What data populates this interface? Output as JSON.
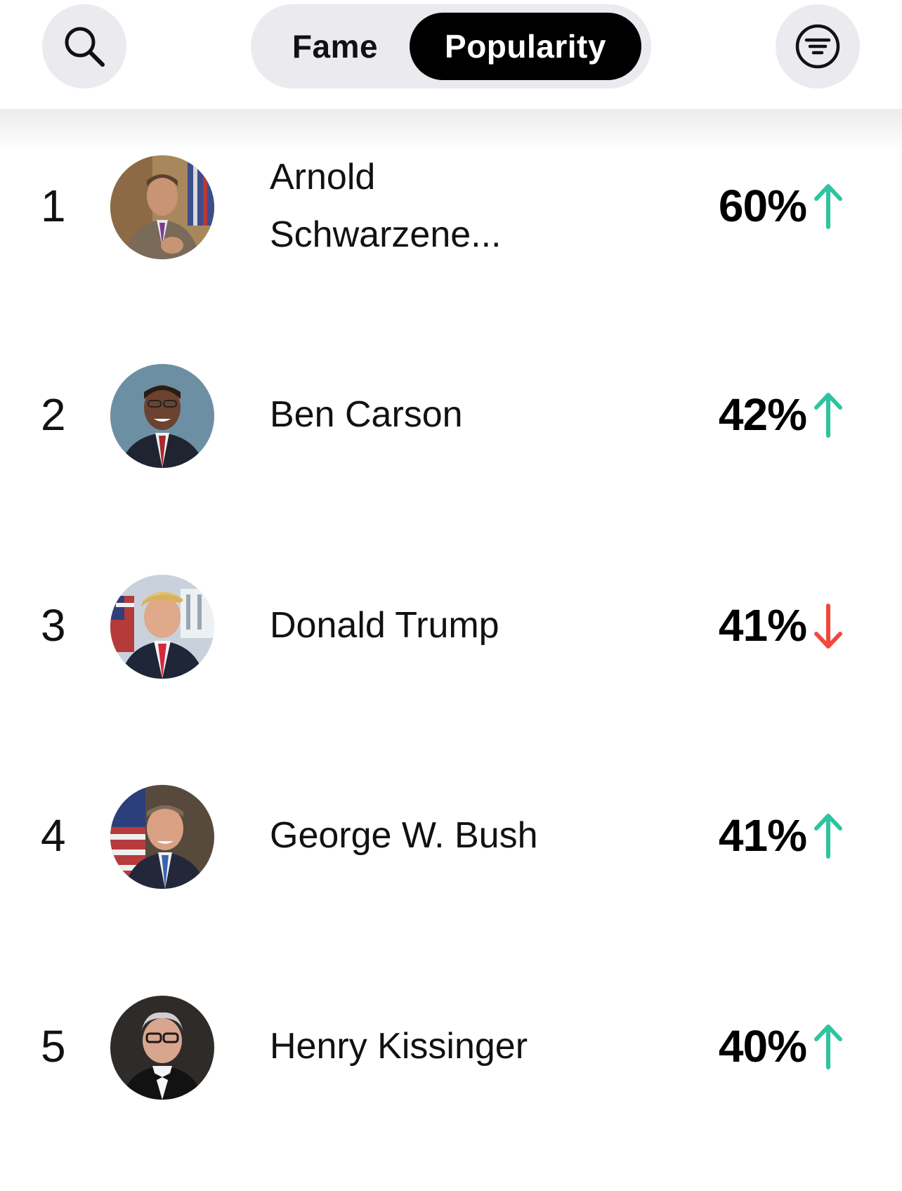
{
  "header": {
    "search_icon": "search-icon",
    "filter_icon": "filter-icon",
    "tabs": [
      {
        "label": "Fame",
        "selected": false
      },
      {
        "label": "Popularity",
        "selected": true
      }
    ]
  },
  "colors": {
    "up": "#2ec4a0",
    "down": "#f0483c",
    "selected_tab_bg": "#000000",
    "button_bg": "#ebebef"
  },
  "rankings": [
    {
      "rank": "1",
      "name": "Arnold Schwarzene...",
      "percent": "60%",
      "trend": "up"
    },
    {
      "rank": "2",
      "name": "Ben Carson",
      "percent": "42%",
      "trend": "up"
    },
    {
      "rank": "3",
      "name": "Donald Trump",
      "percent": "41%",
      "trend": "down"
    },
    {
      "rank": "4",
      "name": "George W. Bush",
      "percent": "41%",
      "trend": "up"
    },
    {
      "rank": "5",
      "name": "Henry Kissinger",
      "percent": "40%",
      "trend": "up"
    }
  ]
}
